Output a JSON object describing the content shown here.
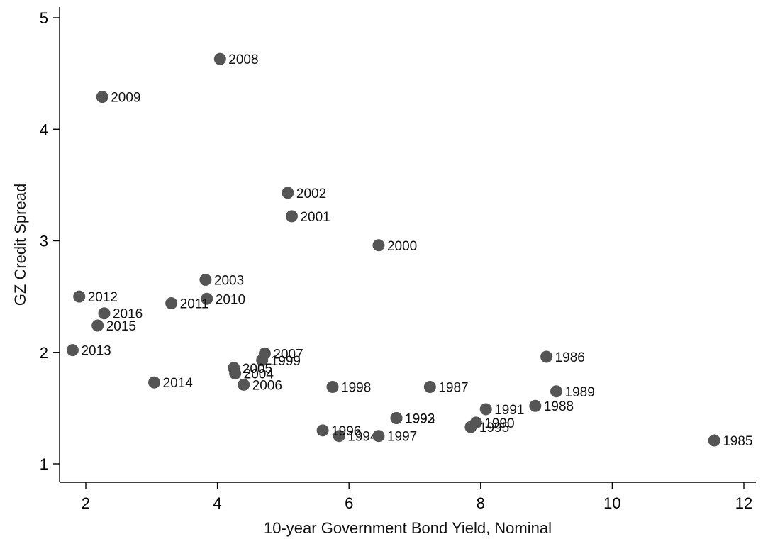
{
  "chart_data": {
    "type": "scatter",
    "title": "",
    "xlabel": "10-year Government Bond Yield, Nominal",
    "ylabel": "GZ Credit Spread",
    "xlim": [
      1.6,
      12.2
    ],
    "ylim": [
      0.8,
      5.1
    ],
    "xticks": [
      2,
      4,
      6,
      8,
      10,
      12
    ],
    "yticks": [
      1,
      2,
      3,
      4,
      5
    ],
    "grid": false,
    "marker_color": "#555555",
    "series": [
      {
        "points": [
          {
            "label": "1985",
            "x": 11.55,
            "y": 1.21
          },
          {
            "label": "1986",
            "x": 9.0,
            "y": 1.96
          },
          {
            "label": "1987",
            "x": 7.23,
            "y": 1.69
          },
          {
            "label": "1988",
            "x": 8.83,
            "y": 1.52
          },
          {
            "label": "1989",
            "x": 9.15,
            "y": 1.65
          },
          {
            "label": "1990",
            "x": 7.93,
            "y": 1.37
          },
          {
            "label": "1991",
            "x": 8.08,
            "y": 1.49
          },
          {
            "label": "1992",
            "x": 6.72,
            "y": 1.41
          },
          {
            "label": "1993",
            "x": 6.72,
            "y": 1.41
          },
          {
            "label": "1994",
            "x": 5.85,
            "y": 1.25
          },
          {
            "label": "1995",
            "x": 7.85,
            "y": 1.33
          },
          {
            "label": "1996",
            "x": 5.6,
            "y": 1.3
          },
          {
            "label": "1997",
            "x": 6.45,
            "y": 1.25
          },
          {
            "label": "1998",
            "x": 5.75,
            "y": 1.69
          },
          {
            "label": "1999",
            "x": 4.68,
            "y": 1.93
          },
          {
            "label": "2000",
            "x": 6.45,
            "y": 2.96
          },
          {
            "label": "2001",
            "x": 5.13,
            "y": 3.22
          },
          {
            "label": "2002",
            "x": 5.07,
            "y": 3.43
          },
          {
            "label": "2003",
            "x": 3.82,
            "y": 2.65
          },
          {
            "label": "2004",
            "x": 4.27,
            "y": 1.81
          },
          {
            "label": "2005",
            "x": 4.25,
            "y": 1.86
          },
          {
            "label": "2006",
            "x": 4.4,
            "y": 1.71
          },
          {
            "label": "2007",
            "x": 4.72,
            "y": 1.99
          },
          {
            "label": "2008",
            "x": 4.04,
            "y": 4.63
          },
          {
            "label": "2009",
            "x": 2.25,
            "y": 4.29
          },
          {
            "label": "2010",
            "x": 3.84,
            "y": 2.48
          },
          {
            "label": "2011",
            "x": 3.3,
            "y": 2.44
          },
          {
            "label": "2012",
            "x": 1.9,
            "y": 2.5
          },
          {
            "label": "2013",
            "x": 1.8,
            "y": 2.02
          },
          {
            "label": "2014",
            "x": 3.04,
            "y": 1.73
          },
          {
            "label": "2015",
            "x": 2.18,
            "y": 2.24
          },
          {
            "label": "2016",
            "x": 2.28,
            "y": 2.35
          }
        ]
      }
    ]
  }
}
